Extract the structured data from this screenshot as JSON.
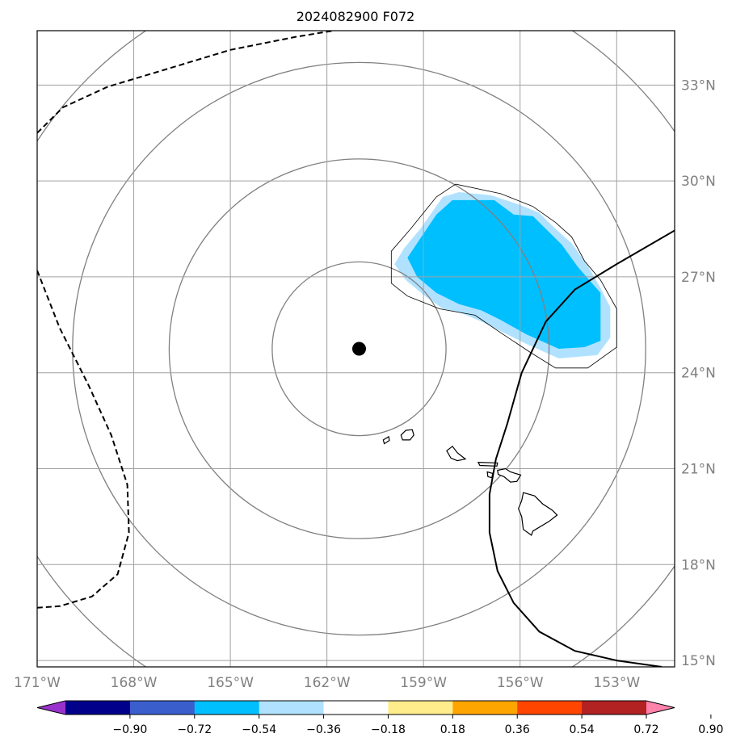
{
  "chart_data": {
    "type": "map",
    "title": "2024082900 F072",
    "extent": {
      "lon": [
        -171.0,
        -151.2
      ],
      "lat": [
        14.8,
        34.7
      ]
    },
    "lon_ticks": [
      -171,
      -168,
      -165,
      -162,
      -159,
      -156,
      -153
    ],
    "lon_tick_labels": [
      "171°W",
      "168°W",
      "165°W",
      "162°W",
      "159°W",
      "156°W",
      "153°W"
    ],
    "lat_ticks": [
      15,
      18,
      21,
      24,
      27,
      30,
      33
    ],
    "lat_tick_labels": [
      "15°N",
      "18°N",
      "21°N",
      "24°N",
      "27°N",
      "30°N",
      "33°N"
    ],
    "grid": true,
    "center": {
      "lon": -161.0,
      "lat": 24.75
    },
    "range_rings_deg": [
      2.7,
      5.9,
      8.9,
      11.9
    ],
    "colorbar": {
      "orientation": "horizontal",
      "extend": "both",
      "boundaries": [
        -0.9,
        -0.72,
        -0.54,
        -0.36,
        -0.18,
        0.18,
        0.36,
        0.54,
        0.72,
        0.9
      ],
      "tick_labels": [
        "−0.90",
        "−0.72",
        "−0.54",
        "−0.36",
        "−0.18",
        "0.18",
        "0.36",
        "0.54",
        "0.72",
        "0.90"
      ],
      "colors": [
        "#9932cc",
        "#00008b",
        "#3a5fcd",
        "#00bfff",
        "#b0e2ff",
        "#ffffff",
        "#ffec8b",
        "#ffa500",
        "#ff4500",
        "#b22222",
        "#ff82ab"
      ]
    },
    "shaded_regions": [
      {
        "name": "anomaly-light",
        "level": "-0.36 to -0.18",
        "color": "#b0e2ff",
        "polygon": [
          [
            -159.9,
            27.4
          ],
          [
            -159.6,
            27.9
          ],
          [
            -159.1,
            28.5
          ],
          [
            -158.4,
            29.5
          ],
          [
            -157.9,
            29.65
          ],
          [
            -156.9,
            29.55
          ],
          [
            -156.0,
            29.25
          ],
          [
            -155.4,
            29.0
          ],
          [
            -154.9,
            28.5
          ],
          [
            -154.4,
            28.05
          ],
          [
            -153.9,
            27.35
          ],
          [
            -153.5,
            26.65
          ],
          [
            -153.2,
            26.05
          ],
          [
            -153.2,
            25.1
          ],
          [
            -153.6,
            24.55
          ],
          [
            -154.8,
            24.45
          ],
          [
            -155.8,
            24.9
          ],
          [
            -156.6,
            25.3
          ],
          [
            -157.2,
            25.6
          ],
          [
            -157.9,
            25.9
          ],
          [
            -158.4,
            26.0
          ],
          [
            -158.95,
            26.4
          ],
          [
            -159.55,
            26.9
          ]
        ]
      },
      {
        "name": "anomaly-medium",
        "level": "-0.54 to -0.36",
        "color": "#00bfff",
        "polygon": [
          [
            -159.5,
            27.6
          ],
          [
            -159.1,
            28.2
          ],
          [
            -158.6,
            28.95
          ],
          [
            -158.1,
            29.4
          ],
          [
            -156.8,
            29.4
          ],
          [
            -156.2,
            28.95
          ],
          [
            -155.6,
            28.9
          ],
          [
            -155.1,
            28.4
          ],
          [
            -154.7,
            28.0
          ],
          [
            -154.2,
            27.3
          ],
          [
            -153.5,
            26.5
          ],
          [
            -153.5,
            25.0
          ],
          [
            -154.0,
            24.8
          ],
          [
            -154.8,
            24.75
          ],
          [
            -155.8,
            25.2
          ],
          [
            -156.6,
            25.65
          ],
          [
            -157.2,
            25.95
          ],
          [
            -157.9,
            26.15
          ],
          [
            -158.6,
            26.5
          ],
          [
            -159.2,
            27.0
          ]
        ]
      }
    ],
    "outline_polygon": [
      [
        -160.0,
        26.8
      ],
      [
        -160.0,
        27.8
      ],
      [
        -159.4,
        28.5
      ],
      [
        -158.6,
        29.5
      ],
      [
        -158.0,
        29.9
      ],
      [
        -156.6,
        29.6
      ],
      [
        -155.6,
        29.2
      ],
      [
        -154.9,
        28.7
      ],
      [
        -154.4,
        28.25
      ],
      [
        -154.0,
        27.5
      ],
      [
        -153.5,
        26.9
      ],
      [
        -153.0,
        26.0
      ],
      [
        -153.0,
        24.8
      ],
      [
        -153.9,
        24.15
      ],
      [
        -154.9,
        24.15
      ],
      [
        -155.7,
        24.65
      ],
      [
        -156.6,
        25.25
      ],
      [
        -157.4,
        25.8
      ],
      [
        -158.5,
        26.0
      ],
      [
        -159.5,
        26.4
      ]
    ],
    "solid_track": [
      [
        -151.2,
        28.45
      ],
      [
        -153.0,
        27.4
      ],
      [
        -154.3,
        26.6
      ],
      [
        -155.2,
        25.6
      ],
      [
        -155.95,
        24.0
      ],
      [
        -156.4,
        22.4
      ],
      [
        -156.75,
        21.3
      ],
      [
        -156.95,
        20.2
      ],
      [
        -156.95,
        19.0
      ],
      [
        -156.7,
        17.8
      ],
      [
        -156.2,
        16.8
      ],
      [
        -155.4,
        15.9
      ],
      [
        -154.3,
        15.3
      ],
      [
        -153.0,
        15.0
      ],
      [
        -151.6,
        14.8
      ]
    ],
    "dashed_contours": [
      [
        [
          -171.0,
          31.5
        ],
        [
          -170.2,
          32.3
        ],
        [
          -168.8,
          32.95
        ],
        [
          -167.3,
          33.4
        ],
        [
          -165.0,
          34.1
        ],
        [
          -163.0,
          34.5
        ],
        [
          -161.5,
          34.75
        ]
      ],
      [
        [
          -171.0,
          27.2
        ],
        [
          -170.3,
          25.4
        ],
        [
          -169.4,
          23.6
        ],
        [
          -168.7,
          22.05
        ],
        [
          -168.2,
          20.5
        ],
        [
          -168.15,
          19.0
        ],
        [
          -168.5,
          17.7
        ],
        [
          -169.3,
          17.0
        ],
        [
          -170.3,
          16.7
        ],
        [
          -171.0,
          16.65
        ]
      ]
    ],
    "center_marker": "filled-circle",
    "islands": [
      {
        "name": "Kauai",
        "polygon": [
          [
            -159.7,
            22.05
          ],
          [
            -159.55,
            22.2
          ],
          [
            -159.35,
            22.22
          ],
          [
            -159.3,
            22.05
          ],
          [
            -159.42,
            21.9
          ],
          [
            -159.65,
            21.9
          ]
        ]
      },
      {
        "name": "Niihau",
        "polygon": [
          [
            -160.25,
            21.9
          ],
          [
            -160.08,
            22.0
          ],
          [
            -160.06,
            21.88
          ],
          [
            -160.22,
            21.78
          ]
        ]
      },
      {
        "name": "Oahu",
        "polygon": [
          [
            -158.28,
            21.56
          ],
          [
            -158.1,
            21.7
          ],
          [
            -157.95,
            21.5
          ],
          [
            -157.7,
            21.3
          ],
          [
            -157.95,
            21.25
          ],
          [
            -158.15,
            21.33
          ]
        ]
      },
      {
        "name": "Molokai",
        "polygon": [
          [
            -157.3,
            21.2
          ],
          [
            -156.7,
            21.18
          ],
          [
            -156.72,
            21.08
          ],
          [
            -157.25,
            21.1
          ]
        ]
      },
      {
        "name": "Lanai",
        "polygon": [
          [
            -157.02,
            20.9
          ],
          [
            -156.85,
            20.85
          ],
          [
            -156.88,
            20.72
          ],
          [
            -157.0,
            20.75
          ]
        ]
      },
      {
        "name": "Maui",
        "polygon": [
          [
            -156.7,
            20.95
          ],
          [
            -156.45,
            21.0
          ],
          [
            -156.3,
            20.9
          ],
          [
            -155.98,
            20.8
          ],
          [
            -156.1,
            20.6
          ],
          [
            -156.3,
            20.58
          ],
          [
            -156.5,
            20.75
          ],
          [
            -156.68,
            20.82
          ]
        ]
      },
      {
        "name": "Hawaii",
        "polygon": [
          [
            -155.9,
            20.25
          ],
          [
            -155.55,
            20.15
          ],
          [
            -155.3,
            19.9
          ],
          [
            -155.0,
            19.7
          ],
          [
            -154.85,
            19.55
          ],
          [
            -155.1,
            19.35
          ],
          [
            -155.6,
            19.05
          ],
          [
            -155.65,
            18.92
          ],
          [
            -155.9,
            19.1
          ],
          [
            -155.95,
            19.5
          ],
          [
            -156.05,
            19.75
          ],
          [
            -155.95,
            20.0
          ]
        ]
      }
    ]
  }
}
